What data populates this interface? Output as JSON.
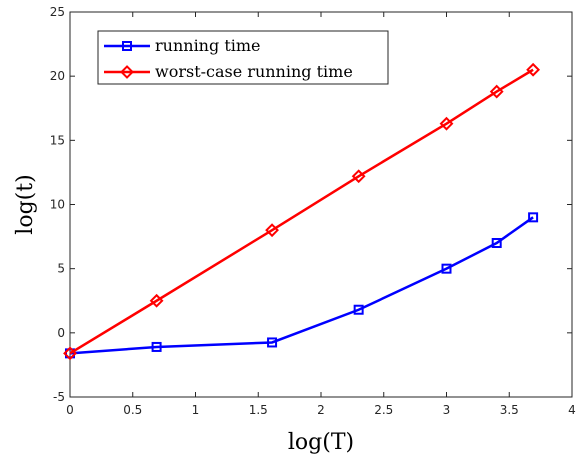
{
  "chart_data": {
    "type": "line",
    "xlabel": "log(T)",
    "ylabel": "log(t)",
    "xlim": [
      0,
      4
    ],
    "ylim": [
      -5,
      25
    ],
    "xticks": [
      "0",
      "0.5",
      "1",
      "1.5",
      "2",
      "2.5",
      "3",
      "3.5",
      "4"
    ],
    "yticks": [
      "-5",
      "0",
      "5",
      "10",
      "15",
      "20",
      "25"
    ],
    "grid": false,
    "legend_position": "top-left",
    "series": [
      {
        "name": "running time",
        "color": "#0000ff",
        "marker": "square",
        "x": [
          0,
          0.69,
          1.61,
          2.3,
          3.0,
          3.4,
          3.69
        ],
        "y": [
          -1.6,
          -1.1,
          -0.75,
          1.8,
          5.0,
          7.0,
          9.0
        ]
      },
      {
        "name": "worst-case running time",
        "color": "#ff0000",
        "marker": "diamond",
        "x": [
          0,
          0.69,
          1.61,
          2.3,
          3.0,
          3.4,
          3.69
        ],
        "y": [
          -1.6,
          2.5,
          8.0,
          12.2,
          16.3,
          18.8,
          20.5
        ]
      }
    ]
  }
}
